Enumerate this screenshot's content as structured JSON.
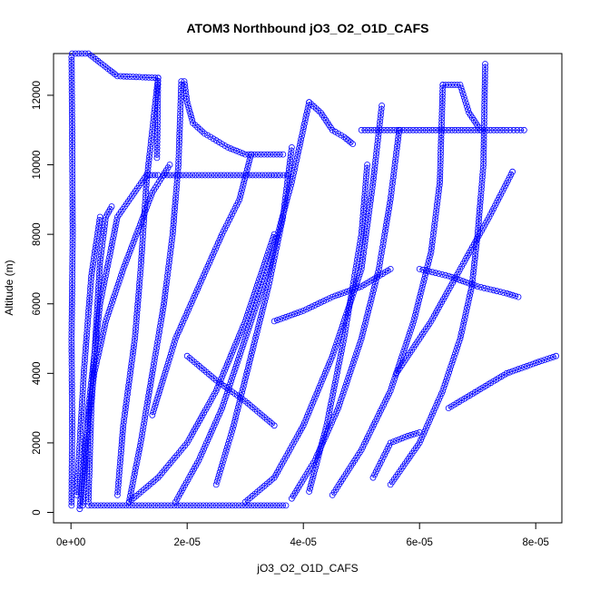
{
  "chart_data": {
    "type": "scatter",
    "title": "ATOM3 Northbound jO3_O2_O1D_CAFS",
    "xlabel": "jO3_O2_O1D_CAFS",
    "ylabel": "Altitude (m)",
    "xlim": [
      -3e-06,
      8.45e-05
    ],
    "ylim": [
      -300,
      13200
    ],
    "x_ticks": [
      0,
      2e-05,
      4e-05,
      6e-05,
      8e-05
    ],
    "x_tick_labels": [
      "0e+00",
      "2e-05",
      "4e-05",
      "6e-05",
      "8e-05"
    ],
    "y_ticks": [
      0,
      2000,
      4000,
      6000,
      8000,
      10000,
      12000
    ],
    "y_tick_labels": [
      "0",
      "2000",
      "4000",
      "6000",
      "8000",
      "10000",
      "12000"
    ],
    "grid": false,
    "marker": "open-circle",
    "color": "#0000ff",
    "series": [
      {
        "x": [
          1e-07,
          2e-07,
          1e-07,
          3e-07,
          2e-07,
          1e-07
        ],
        "y": [
          200,
          2500,
          5000,
          8000,
          11000,
          13100
        ]
      },
      {
        "x": [
          2e-07,
          3e-06,
          8e-06,
          1.5e-05,
          1.48e-05
        ],
        "y": [
          13200,
          13200,
          12550,
          12500,
          10200
        ]
      },
      {
        "x": [
          2e-06,
          3e-06,
          5e-06,
          8e-06,
          1.3e-05,
          1.5e-05
        ],
        "y": [
          200,
          3000,
          6000,
          8500,
          9700,
          9700
        ]
      },
      {
        "x": [
          1.5e-06,
          2.5e-06,
          4e-06,
          6e-06,
          9e-06,
          1.4e-05,
          1.7e-05
        ],
        "y": [
          100,
          2000,
          4000,
          5500,
          7000,
          9200,
          10000
        ]
      },
      {
        "x": [
          3e-06,
          3.5e-06,
          5e-06,
          6e-06,
          7e-06
        ],
        "y": [
          300,
          3000,
          7200,
          8500,
          8800
        ]
      },
      {
        "x": [
          1e-06,
          2.2e-06,
          3.5e-06,
          5e-06
        ],
        "y": [
          500,
          4000,
          6800,
          8500
        ]
      },
      {
        "x": [
          8e-06,
          9e-06,
          1.1e-05,
          1.2e-05,
          1.3e-05,
          1.5e-05
        ],
        "y": [
          500,
          2500,
          5000,
          7000,
          9500,
          12500
        ]
      },
      {
        "x": [
          1e-05,
          1.2e-05,
          1.4e-05,
          1.6e-05,
          1.75e-05,
          1.85e-05,
          1.9e-05
        ],
        "y": [
          300,
          2000,
          4000,
          6000,
          8000,
          10000,
          12400
        ]
      },
      {
        "x": [
          1.95e-05,
          2e-05,
          2.1e-05,
          2.3e-05,
          2.5e-05,
          2.7e-05,
          3e-05,
          3.65e-05
        ],
        "y": [
          12400,
          11800,
          11200,
          10900,
          10700,
          10500,
          10300,
          10300
        ]
      },
      {
        "x": [
          1.4e-05,
          1.8e-05,
          2.2e-05,
          2.6e-05,
          2.9e-05,
          3.1e-05
        ],
        "y": [
          2800,
          5000,
          6500,
          8000,
          9000,
          10300
        ]
      },
      {
        "x": [
          1.6e-05,
          2.2e-05,
          2.8e-05,
          3.4e-05,
          3.6e-05,
          3.72e-05
        ],
        "y": [
          9700,
          9700,
          9700,
          9700,
          9700,
          9700
        ]
      },
      {
        "x": [
          3e-06,
          1e-05,
          2e-05,
          3e-05,
          3.7e-05
        ],
        "y": [
          200,
          200,
          200,
          200,
          200
        ]
      },
      {
        "x": [
          1e-05,
          1.5e-05,
          2e-05,
          2.5e-05,
          3e-05,
          3.5e-05
        ],
        "y": [
          300,
          1000,
          2000,
          3500,
          5500,
          8000
        ]
      },
      {
        "x": [
          2.5e-05,
          2.8e-05,
          3.1e-05,
          3.4e-05,
          3.65e-05,
          3.8e-05
        ],
        "y": [
          800,
          2500,
          4500,
          6500,
          8500,
          10500
        ]
      },
      {
        "x": [
          1.8e-05,
          2.2e-05,
          2.6e-05,
          3e-05,
          3.4e-05,
          3.8e-05,
          4.1e-05
        ],
        "y": [
          300,
          1500,
          3000,
          5000,
          7000,
          9500,
          11800
        ]
      },
      {
        "x": [
          4.1e-05,
          4.3e-05,
          4.5e-05,
          4.7e-05,
          4.85e-05
        ],
        "y": [
          11800,
          11500,
          11000,
          10800,
          10600
        ]
      },
      {
        "x": [
          3e-05,
          3.5e-05,
          4e-05,
          4.5e-05,
          5e-05,
          5.2e-05,
          5.35e-05
        ],
        "y": [
          300,
          1000,
          2500,
          4500,
          7000,
          9500,
          11700
        ]
      },
      {
        "x": [
          3.8e-05,
          4.2e-05,
          4.6e-05,
          5e-05,
          5.3e-05,
          5.5e-05,
          5.65e-05
        ],
        "y": [
          400,
          1500,
          3000,
          5000,
          7000,
          9000,
          11000
        ]
      },
      {
        "x": [
          5e-05,
          5.5e-05,
          6e-05,
          6.5e-05,
          7e-05,
          7.5e-05,
          7.8e-05
        ],
        "y": [
          11000,
          11000,
          11000,
          11000,
          11000,
          11000,
          11000
        ]
      },
      {
        "x": [
          4.5e-05,
          5e-05,
          5.5e-05,
          5.9e-05,
          6.2e-05,
          6.35e-05,
          6.4e-05
        ],
        "y": [
          500,
          1800,
          3500,
          5500,
          7500,
          9500,
          12300
        ]
      },
      {
        "x": [
          6.4e-05,
          6.6e-05,
          6.7e-05,
          6.85e-05,
          7.05e-05
        ],
        "y": [
          12300,
          12300,
          12300,
          11500,
          11000
        ]
      },
      {
        "x": [
          5.5e-05,
          6e-05,
          6.4e-05,
          6.7e-05,
          6.9e-05,
          7e-05,
          7.1e-05,
          7.13e-05
        ],
        "y": [
          800,
          2000,
          3500,
          5000,
          6500,
          8000,
          10000,
          12900
        ]
      },
      {
        "x": [
          5.2e-05,
          5.5e-05,
          5.8e-05,
          6e-05
        ],
        "y": [
          1000,
          2000,
          2200,
          2300
        ]
      },
      {
        "x": [
          4.1e-05,
          4.4e-05,
          4.7e-05,
          5e-05,
          5.1e-05
        ],
        "y": [
          600,
          2500,
          5000,
          8000,
          10000
        ]
      },
      {
        "x": [
          5.6e-05,
          6.2e-05,
          6.7e-05,
          7.2e-05,
          7.6e-05
        ],
        "y": [
          4000,
          5500,
          7000,
          8500,
          9800
        ]
      },
      {
        "x": [
          6.5e-05,
          7e-05,
          7.5e-05,
          8e-05,
          8.35e-05
        ],
        "y": [
          3000,
          3500,
          4000,
          4300,
          4500
        ]
      },
      {
        "x": [
          6e-05,
          6.5e-05,
          7e-05,
          7.5e-05,
          7.7e-05
        ],
        "y": [
          7000,
          6800,
          6500,
          6300,
          6200
        ]
      },
      {
        "x": [
          2e-05,
          2.5e-05,
          3e-05,
          3.5e-05
        ],
        "y": [
          4500,
          3800,
          3200,
          2500
        ]
      },
      {
        "x": [
          3.5e-05,
          4e-05,
          4.5e-05,
          5e-05,
          5.5e-05
        ],
        "y": [
          5500,
          5800,
          6200,
          6500,
          7000
        ]
      }
    ]
  }
}
